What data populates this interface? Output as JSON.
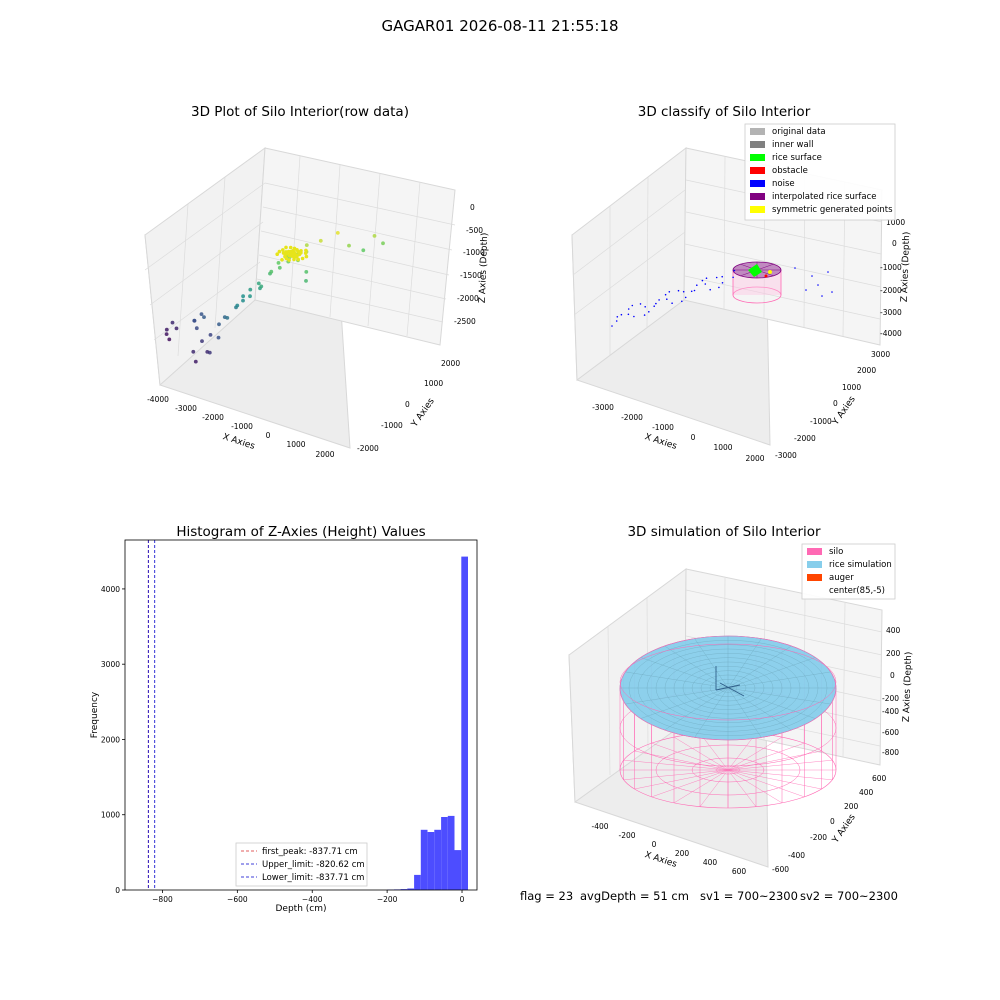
{
  "suptitle": "GAGAR01 2026-08-11 21:55:18",
  "colors": {
    "original_data": "#b3b3b3",
    "inner_wall": "#808080",
    "rice_surface": "#00ff00",
    "obstacle": "#ff0000",
    "noise": "#0000ff",
    "interpolated": "#800080",
    "symmetric": "#ffff00",
    "silo": "#ff69b4",
    "rice_sim": "#87ceeb",
    "auger": "#ff4500",
    "hist": "#4d4dff"
  },
  "chart_data": [
    {
      "type": "scatter",
      "title": "3D Plot of Silo Interior(row data)",
      "xlabel": "X Axies",
      "ylabel": "Y Axies",
      "zlabel": "Z Axies (Depth)",
      "x_ticks": [
        "-4000",
        "-3000",
        "-2000",
        "-1000",
        "0",
        "1000",
        "2000"
      ],
      "y_ticks": [
        "-2000",
        "-1000",
        "0",
        "1000",
        "2000"
      ],
      "z_ticks": [
        "0",
        "-500",
        "-1000",
        "-1500",
        "-2000",
        "-2500"
      ],
      "points": [
        {
          "x": -3900,
          "y": 200,
          "z": -2400
        },
        {
          "x": -3850,
          "y": 150,
          "z": -2450
        },
        {
          "x": -3800,
          "y": 300,
          "z": -2300
        },
        {
          "x": -3700,
          "y": 100,
          "z": -2500
        },
        {
          "x": -3600,
          "y": 250,
          "z": -2350
        },
        {
          "x": -3000,
          "y": 300,
          "z": -2100
        },
        {
          "x": -2900,
          "y": 200,
          "z": -2000
        },
        {
          "x": -2800,
          "y": 350,
          "z": -1950
        },
        {
          "x": -2700,
          "y": 100,
          "z": -2050
        },
        {
          "x": -2600,
          "y": 250,
          "z": -1900
        },
        {
          "x": -2400,
          "y": 0,
          "z": -2200
        },
        {
          "x": -2200,
          "y": 100,
          "z": -2100
        },
        {
          "x": -2100,
          "y": -100,
          "z": -2300
        },
        {
          "x": -2000,
          "y": 200,
          "z": -1900
        },
        {
          "x": -1900,
          "y": 300,
          "z": -1800
        },
        {
          "x": -1800,
          "y": 0,
          "z": -2000
        },
        {
          "x": -1700,
          "y": 200,
          "z": -1700
        },
        {
          "x": -1600,
          "y": 400,
          "z": -1600
        },
        {
          "x": -1500,
          "y": 350,
          "z": -1500
        },
        {
          "x": -1450,
          "y": 500,
          "z": -1400
        },
        {
          "x": -1400,
          "y": 450,
          "z": -1450
        },
        {
          "x": -1300,
          "y": 600,
          "z": -1300
        },
        {
          "x": -1200,
          "y": 500,
          "z": -1350
        },
        {
          "x": -1100,
          "y": 700,
          "z": -1200
        },
        {
          "x": -1000,
          "y": 650,
          "z": -1250
        },
        {
          "x": -900,
          "y": 600,
          "z": -1150
        },
        {
          "x": -800,
          "y": 800,
          "z": -1000
        },
        {
          "x": -700,
          "y": 750,
          "z": -900
        },
        {
          "x": -600,
          "y": 900,
          "z": -800
        },
        {
          "x": -500,
          "y": 850,
          "z": -850
        },
        {
          "x": -400,
          "y": 1000,
          "z": -700
        },
        {
          "x": -300,
          "y": 950,
          "z": -750
        },
        {
          "x": -200,
          "y": 900,
          "z": -600
        },
        {
          "x": -100,
          "y": 1100,
          "z": -650
        },
        {
          "x": 0,
          "y": 1000,
          "z": -700
        },
        {
          "x": 100,
          "y": 1200,
          "z": -500
        },
        {
          "x": 200,
          "y": 1100,
          "z": -550
        },
        {
          "x": 300,
          "y": 1000,
          "z": -900
        },
        {
          "x": 400,
          "y": 900,
          "z": -1000
        },
        {
          "x": 500,
          "y": 1300,
          "z": -400
        },
        {
          "x": 900,
          "y": 1500,
          "z": -300
        },
        {
          "x": 1200,
          "y": 1600,
          "z": -600
        },
        {
          "x": 1500,
          "y": 1800,
          "z": -800
        },
        {
          "x": 1800,
          "y": 1900,
          "z": -500
        },
        {
          "x": 2000,
          "y": 2000,
          "z": -700
        },
        {
          "x": -2500,
          "y": -200,
          "z": -2300
        },
        {
          "x": -2300,
          "y": -300,
          "z": -2400
        },
        {
          "x": -1900,
          "y": -200,
          "z": -2200
        }
      ],
      "cluster": {
        "x": -100,
        "y": 900,
        "z": -500
      }
    },
    {
      "type": "scatter",
      "title": "3D classify of Silo Interior",
      "xlabel": "X Axies",
      "ylabel": "Y Axies",
      "zlabel": "Z Axies (Depth)",
      "x_ticks": [
        "-3000",
        "-2000",
        "-1000",
        "0",
        "1000",
        "2000"
      ],
      "y_ticks": [
        "-3000",
        "-2000",
        "-1000",
        "0",
        "1000",
        "2000",
        "3000"
      ],
      "z_ticks": [
        "1000",
        "0",
        "-1000",
        "-2000",
        "-3000",
        "-4000"
      ],
      "legend": [
        {
          "label": "original data",
          "color_key": "original_data"
        },
        {
          "label": "inner wall",
          "color_key": "inner_wall"
        },
        {
          "label": "rice surface",
          "color_key": "rice_surface"
        },
        {
          "label": "obstacle",
          "color_key": "obstacle"
        },
        {
          "label": "noise",
          "color_key": "noise"
        },
        {
          "label": "interpolated rice surface",
          "color_key": "interpolated"
        },
        {
          "label": "symmetric generated points",
          "color_key": "symmetric"
        }
      ]
    },
    {
      "type": "bar",
      "title": "Histogram of Z-Axies (Height) Values",
      "xlabel": "Depth (cm)",
      "ylabel": "Frequency",
      "xlim": [
        -900,
        40
      ],
      "ylim": [
        0,
        4650
      ],
      "x_ticks": [
        -800,
        -600,
        -400,
        -200,
        0
      ],
      "y_ticks": [
        0,
        1000,
        2000,
        3000,
        4000
      ],
      "bin_width": 18,
      "bins": [
        {
          "left": -200,
          "count": 5
        },
        {
          "left": -182,
          "count": 8
        },
        {
          "left": -164,
          "count": 12
        },
        {
          "left": -146,
          "count": 20
        },
        {
          "left": -128,
          "count": 200
        },
        {
          "left": -110,
          "count": 800
        },
        {
          "left": -92,
          "count": 770
        },
        {
          "left": -74,
          "count": 800
        },
        {
          "left": -56,
          "count": 970
        },
        {
          "left": -38,
          "count": 985
        },
        {
          "left": -20,
          "count": 530
        },
        {
          "left": -2,
          "count": 4430
        }
      ],
      "vlines": [
        {
          "x": -837.71,
          "color": "#d62728"
        },
        {
          "x": -820.62,
          "color": "#0000cc"
        },
        {
          "x": -837.71,
          "color": "#0000cc"
        }
      ],
      "legend": [
        {
          "label": "first_peak: -837.71 cm",
          "color": "#d62728"
        },
        {
          "label": "Upper_limit: -820.62 cm",
          "color": "#0000cc"
        },
        {
          "label": "Lower_limit: -837.71 cm",
          "color": "#0000cc"
        }
      ]
    },
    {
      "type": "area",
      "title": "3D simulation of Silo Interior",
      "xlabel": "X Axies",
      "ylabel": "Y Axies",
      "zlabel": "Z Axies (Depth)",
      "x_ticks": [
        "-400",
        "-200",
        "0",
        "200",
        "400",
        "600"
      ],
      "y_ticks": [
        "-600",
        "-400",
        "-200",
        "0",
        "200",
        "400",
        "600"
      ],
      "z_ticks": [
        "400",
        "200",
        "0",
        "-200",
        "-400",
        "-600",
        "-800"
      ],
      "legend": [
        {
          "label": "silo",
          "color_key": "silo"
        },
        {
          "label": "rice simulation",
          "color_key": "rice_sim"
        },
        {
          "label": "auger",
          "color_key": "auger"
        },
        {
          "label": "center(85,-5)",
          "color_key": ""
        }
      ]
    }
  ],
  "info": {
    "flag": "flag = 23",
    "avg": "avgDepth = 51 cm",
    "sv1": "sv1 = 700~2300",
    "sv2": "sv2 = 700~2300"
  }
}
